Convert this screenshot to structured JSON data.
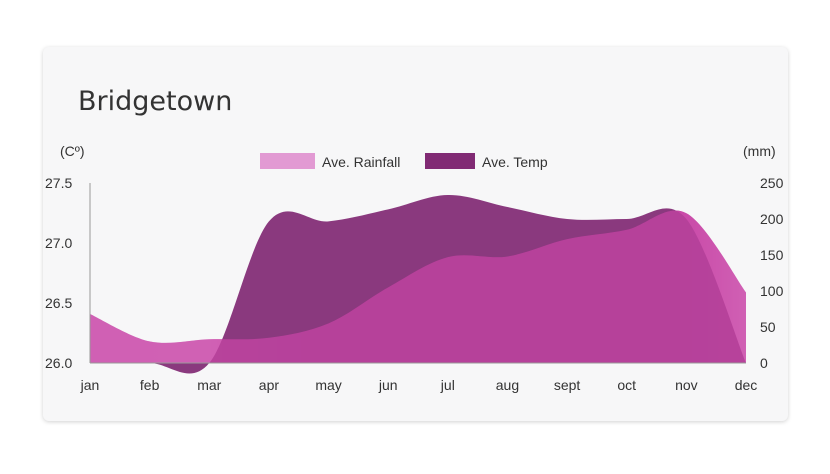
{
  "title": "Bridgetown",
  "colors": {
    "rainfall": "#c94aa8",
    "rainfall_light": "#e29ad3",
    "temp": "#812a74",
    "axis": "#999999"
  },
  "chart_data": {
    "type": "area",
    "title": "Bridgetown",
    "categories": [
      "jan",
      "feb",
      "mar",
      "apr",
      "may",
      "jun",
      "jul",
      "aug",
      "sept",
      "oct",
      "nov",
      "dec"
    ],
    "y_left": {
      "label": "(Cº)",
      "ticks": [
        "27.5",
        "27.0",
        "26.5",
        "26.0"
      ],
      "range": [
        26.0,
        27.5
      ]
    },
    "y_right": {
      "label": "(mm)",
      "ticks": [
        "250",
        "200",
        "150",
        "100",
        "50",
        "0"
      ],
      "range": [
        0,
        250
      ]
    },
    "legend": {
      "placement": "top-center"
    },
    "series": [
      {
        "name": "Ave. Rainfall",
        "axis": "right",
        "values": [
          68,
          30,
          33,
          35,
          55,
          105,
          147,
          148,
          172,
          185,
          208,
          98
        ]
      },
      {
        "name": "Ave. Temp",
        "axis": "left",
        "values": [
          26.0,
          26.0,
          26.0,
          27.18,
          27.18,
          27.28,
          27.4,
          27.3,
          27.2,
          27.2,
          27.2,
          26.0
        ]
      }
    ]
  }
}
